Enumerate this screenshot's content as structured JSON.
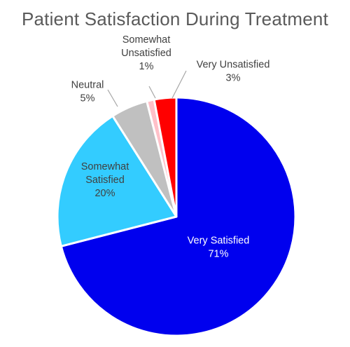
{
  "chart_data": {
    "type": "pie",
    "title": "Patient Satisfaction During Treatment",
    "slices": [
      {
        "category": "Very Satisfied",
        "label_lines": [
          "Very Satisfied"
        ],
        "value": 71,
        "value_label": "71%",
        "color": "#0000ee",
        "label_color": "#ffffff"
      },
      {
        "category": "Somewhat Satisfied",
        "label_lines": [
          "Somewhat",
          "Satisfied"
        ],
        "value": 20,
        "value_label": "20%",
        "color": "#33ccff",
        "label_color": "#404040"
      },
      {
        "category": "Neutral",
        "label_lines": [
          "Neutral"
        ],
        "value": 5,
        "value_label": "5%",
        "color": "#c0c0c0",
        "label_color": "#404040"
      },
      {
        "category": "Somewhat Unsatisfied",
        "label_lines": [
          "Somewhat",
          "Unsatisfied"
        ],
        "value": 1,
        "value_label": "1%",
        "color": "#ffc0c8",
        "label_color": "#404040"
      },
      {
        "category": "Very Unsatisfied",
        "label_lines": [
          "Very Unsatisfied"
        ],
        "value": 3,
        "value_label": "3%",
        "color": "#ff0000",
        "label_color": "#404040"
      }
    ],
    "start": "12 o'clock",
    "direction": "clockwise",
    "legend": "none (data labels with category names and percentages)"
  }
}
